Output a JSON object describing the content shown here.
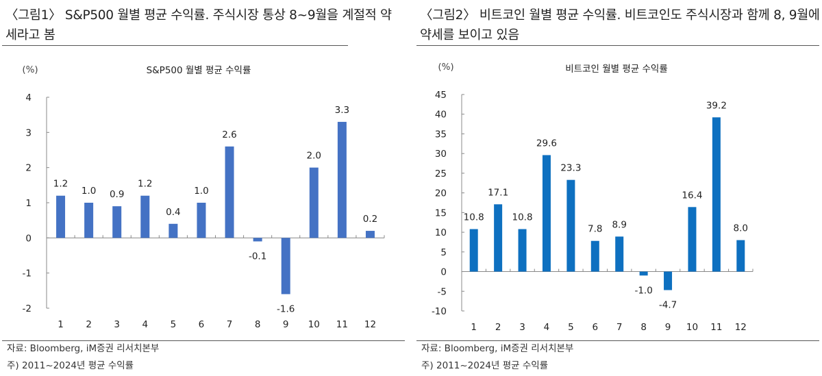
{
  "panels": [
    {
      "title": "〈그림1〉 S&P500 월별 평균 수익률. 주식시장 통상 8~9월을 계절적 약세라고 봄",
      "source": "자료: Bloomberg, iM증권 리서치본부",
      "note": "주) 2011~2024년 평균 수익률"
    },
    {
      "title": "〈그림2〉 비트코인 월별 평균 수익률. 비트코인도 주식시장과 함께 8, 9월에 약세를 보이고 있음",
      "source": "자료: Bloomberg, iM증권 리서치본부",
      "note": "주) 2011~2024년 평균 수익률"
    }
  ],
  "chart_data": [
    {
      "type": "bar",
      "title": "S&P500 월별 평균 수익률",
      "ylabel": "(%)",
      "xlabel": "",
      "categories": [
        "1",
        "2",
        "3",
        "4",
        "5",
        "6",
        "7",
        "8",
        "9",
        "10",
        "11",
        "12"
      ],
      "values": [
        1.2,
        1.0,
        0.9,
        1.2,
        0.4,
        1.0,
        2.6,
        -0.1,
        -1.6,
        2.0,
        3.3,
        0.2
      ],
      "labels": [
        "1.2",
        "1.0",
        "0.9",
        "1.2",
        "0.4",
        "1.0",
        "2.6",
        "-0.1",
        "-1.6",
        "2.0",
        "3.3",
        "0.2"
      ],
      "ylim": [
        -2,
        4
      ],
      "yticks": [
        -2,
        -1,
        0,
        1,
        2,
        3,
        4
      ],
      "color": "#4472C4",
      "grid": false
    },
    {
      "type": "bar",
      "title": "비트코인 월별 평균 수익률",
      "ylabel": "(%)",
      "xlabel": "",
      "categories": [
        "1",
        "2",
        "3",
        "4",
        "5",
        "6",
        "7",
        "8",
        "9",
        "10",
        "11",
        "12"
      ],
      "values": [
        10.8,
        17.1,
        10.8,
        29.6,
        23.3,
        7.8,
        8.9,
        -1.0,
        -4.7,
        16.4,
        39.2,
        8.0
      ],
      "labels": [
        "10.8",
        "17.1",
        "10.8",
        "29.6",
        "23.3",
        "7.8",
        "8.9",
        "-1.0",
        "-4.7",
        "16.4",
        "39.2",
        "8.0"
      ],
      "ylim": [
        -10,
        45
      ],
      "yticks": [
        -10,
        -5,
        0,
        5,
        10,
        15,
        20,
        25,
        30,
        35,
        40,
        45
      ],
      "color": "#0E70C0",
      "grid": false
    }
  ]
}
